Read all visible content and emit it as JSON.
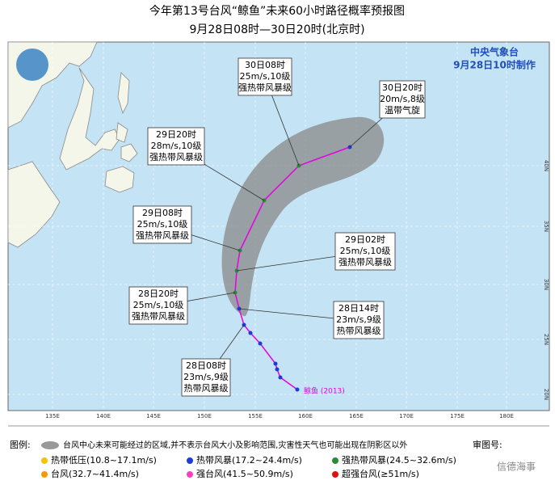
{
  "header": {
    "title": "今年第13号台风“鲸鱼”未来60小时路径概率预报图",
    "subtitle": "9月28日08时—30日20时(北京时)"
  },
  "agency": {
    "name": "中央气象台",
    "issued": "9月28日10时制作"
  },
  "forecasts": [
    {
      "time": "30日08时",
      "wind": "25m/s,10级",
      "level": "强热带风暴级"
    },
    {
      "time": "30日20时",
      "wind": "20m/s,8级",
      "level": "温带气旋"
    },
    {
      "time": "29日20时",
      "wind": "28m/s,10级",
      "level": "强热带风暴级"
    },
    {
      "time": "29日08时",
      "wind": "25m/s,10级",
      "level": "强热带风暴级"
    },
    {
      "time": "29日02时",
      "wind": "25m/s,10级",
      "level": "强热带风暴级"
    },
    {
      "time": "28日20时",
      "wind": "25m/s,10级",
      "level": "强热带风暴级"
    },
    {
      "time": "28日14时",
      "wind": "23m/s,9级",
      "level": "热带风暴级"
    },
    {
      "time": "28日08时",
      "wind": "23m/s,9级",
      "level": "热带风暴级"
    }
  ],
  "storm_label": "鲸鱼 (2013)",
  "lon_labels": [
    "135E",
    "140E",
    "145E",
    "150E",
    "155E",
    "160E",
    "165E",
    "170E",
    "175E",
    "180E"
  ],
  "lat_labels": [
    "20N",
    "25N",
    "30N",
    "35N",
    "40N"
  ],
  "legend": {
    "heading": "图例:",
    "cone": "台风中心未来可能经过的区域,并不表示台风大小及影响范围,灾害性天气也可能出现在阴影区以外",
    "items": [
      "热带低压(10.8~17.1m/s)",
      "热带风暴(17.2~24.4m/s)",
      "强热带风暴(24.5~32.6m/s)",
      "台风(32.7~41.4m/s)",
      "强台风(41.5~50.9m/s)",
      "超强台风(≥51m/s)"
    ]
  },
  "review_no": "审图号:",
  "watermark": "信德海事"
}
